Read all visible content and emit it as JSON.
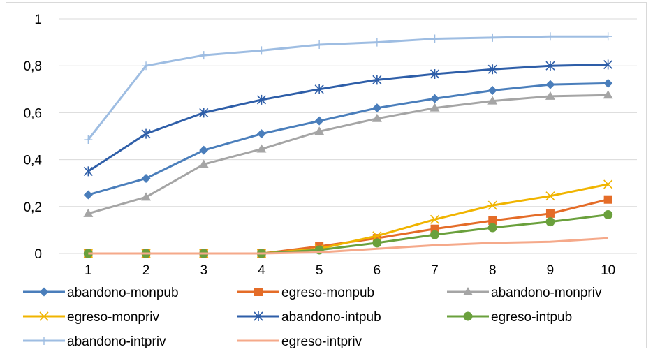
{
  "chart_data": {
    "type": "line",
    "title": "",
    "xlabel": "",
    "ylabel": "",
    "categories": [
      "1",
      "2",
      "3",
      "4",
      "5",
      "6",
      "7",
      "8",
      "9",
      "10"
    ],
    "ylim": [
      0,
      1
    ],
    "yticks": [
      0,
      0.2,
      0.4,
      0.6,
      0.8,
      1
    ],
    "ytick_labels": [
      "0",
      "0,2",
      "0,4",
      "0,6",
      "0,8",
      "1"
    ],
    "grid": "horizontal",
    "legend_position": "bottom",
    "series": [
      {
        "name": "abandono-monpub",
        "color": "#4a7ebb",
        "marker": "diamond",
        "values": [
          0.25,
          0.32,
          0.44,
          0.51,
          0.565,
          0.62,
          0.66,
          0.695,
          0.72,
          0.725
        ]
      },
      {
        "name": "egreso-monpub",
        "color": "#e46c28",
        "marker": "square",
        "values": [
          0,
          0,
          0,
          0,
          0.03,
          0.065,
          0.105,
          0.14,
          0.17,
          0.23
        ]
      },
      {
        "name": "abandono-monpriv",
        "color": "#a5a5a5",
        "marker": "triangle",
        "values": [
          0.17,
          0.24,
          0.38,
          0.445,
          0.52,
          0.575,
          0.62,
          0.65,
          0.67,
          0.675
        ]
      },
      {
        "name": "egreso-monpriv",
        "color": "#f0b400",
        "marker": "x",
        "values": [
          0,
          0,
          0,
          0,
          0.02,
          0.075,
          0.145,
          0.205,
          0.245,
          0.295
        ]
      },
      {
        "name": "abandono-intpub",
        "color": "#2e5ea8",
        "marker": "star",
        "values": [
          0.35,
          0.51,
          0.6,
          0.655,
          0.7,
          0.74,
          0.765,
          0.785,
          0.8,
          0.805
        ]
      },
      {
        "name": "egreso-intpub",
        "color": "#6aa03c",
        "marker": "circle",
        "values": [
          0,
          0,
          0,
          0,
          0.015,
          0.045,
          0.08,
          0.11,
          0.135,
          0.165
        ]
      },
      {
        "name": "abandono-intpriv",
        "color": "#9ebde2",
        "marker": "plus",
        "values": [
          0.485,
          0.8,
          0.845,
          0.865,
          0.89,
          0.9,
          0.915,
          0.92,
          0.925,
          0.925
        ]
      },
      {
        "name": "egreso-intpriv",
        "color": "#f5a98a",
        "marker": "none",
        "values": [
          0,
          0,
          0,
          0,
          0.005,
          0.02,
          0.035,
          0.045,
          0.05,
          0.065
        ]
      }
    ]
  }
}
